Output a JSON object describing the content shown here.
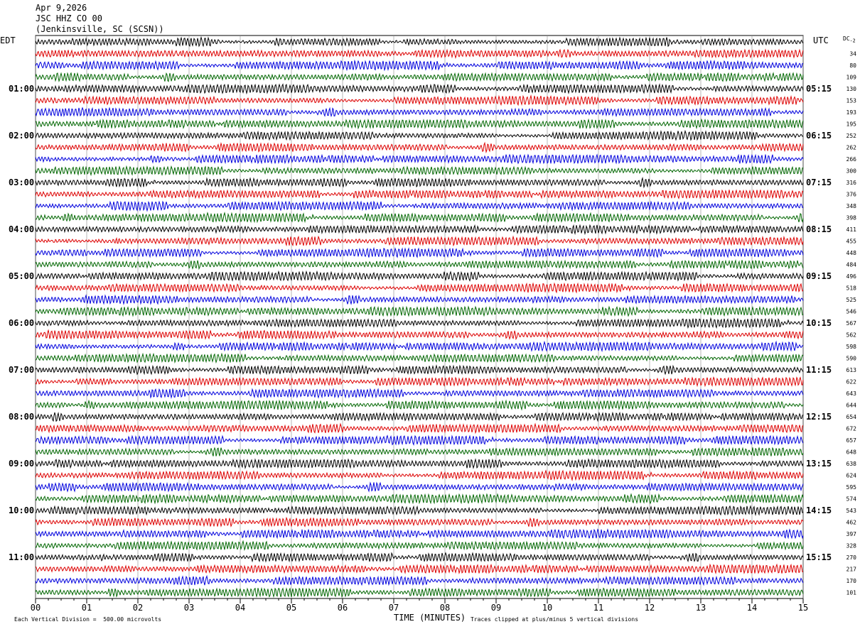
{
  "header": {
    "date": "Apr 9,2026",
    "channel": "JSC HHZ CO 00",
    "location": "(Jenkinsville, SC (SCSN))"
  },
  "left_tz": "EDT",
  "right_tz": "UTC",
  "dc_label": "DC",
  "dc_sub": "-2",
  "footer": {
    "scale": "Each Vertical Division =  500.00 microvolts",
    "xlabel": "TIME (MINUTES)",
    "clip": "Traces clipped at plus/minus 5 vertical divisions"
  },
  "colors": {
    "black": "#000000",
    "red": "#dd0000",
    "blue": "#0000dd",
    "green": "#006600",
    "grid": "#888888"
  },
  "chart_data": {
    "type": "line",
    "title": "",
    "xlabel": "TIME (MINUTES)",
    "x_ticks": [
      "00",
      "01",
      "02",
      "03",
      "04",
      "05",
      "06",
      "07",
      "08",
      "09",
      "10",
      "11",
      "12",
      "13",
      "14",
      "15"
    ],
    "xlim": [
      0,
      15
    ],
    "trace_color_cycle": [
      "black",
      "red",
      "blue",
      "green"
    ],
    "left_hour_labels": [
      "01:00",
      "02:00",
      "03:00",
      "04:00",
      "05:00",
      "06:00",
      "07:00",
      "08:00",
      "09:00",
      "10:00",
      "11:00"
    ],
    "right_hour_labels": [
      "05:15",
      "06:15",
      "07:15",
      "08:15",
      "09:15",
      "10:15",
      "11:15",
      "12:15",
      "13:15",
      "14:15",
      "15:15"
    ],
    "dc_offsets": [
      "",
      "34",
      "80",
      "109",
      "130",
      "153",
      "193",
      "195",
      "252",
      "262",
      "266",
      "300",
      "316",
      "376",
      "348",
      "398",
      "411",
      "455",
      "448",
      "484",
      "496",
      "518",
      "525",
      "546",
      "567",
      "562",
      "598",
      "590",
      "613",
      "622",
      "643",
      "644",
      "654",
      "672",
      "657",
      "648",
      "638",
      "624",
      "595",
      "574",
      "543",
      "462",
      "397",
      "328",
      "270",
      "217",
      "170",
      "101"
    ]
  }
}
